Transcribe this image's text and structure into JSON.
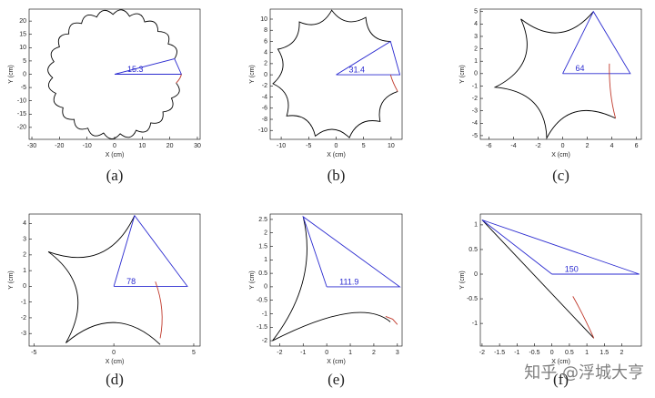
{
  "chart_data": [
    {
      "type": "line",
      "label": "(a)",
      "xlabel": "X (cm)",
      "ylabel": "Y (cm)",
      "annotation": 15.3,
      "xlim": [
        -31,
        31
      ],
      "ylim": [
        -24.5,
        24.5
      ],
      "xticks": [
        -30,
        -20,
        -10,
        0,
        10,
        20,
        30
      ],
      "yticks": [
        -20,
        -15,
        -10,
        -5,
        0,
        5,
        10,
        15,
        20
      ],
      "series": [
        {
          "color": "#000000",
          "smooth": true,
          "x": [
            21.7,
            22.4,
            19.4,
            19.2,
            15.7,
            14.5,
            10.9,
            8.9,
            5.4,
            2.6,
            -0.6,
            -3.9,
            -6.5,
            -10.1,
            -12.0,
            -15.6,
            -16.6,
            -19.9,
            -20.0,
            -22.9,
            -22.0,
            -24.2,
            -22.5,
            -23.9,
            -21.3,
            -21.8,
            -18.7,
            -18.2,
            -14.7,
            -13.3,
            -9.7,
            -7.5,
            -4.0,
            -1.1,
            2.0,
            5.4,
            7.8,
            11.4,
            13.1,
            16.7,
            17.5,
            20.8,
            20.6,
            23.4,
            22.3
          ],
          "y": [
            5.8,
            9.4,
            11.4,
            14.9,
            16.1,
            19.5,
            19.7,
            22.6,
            21.8,
            24.2,
            22.5,
            24.0,
            21.5,
            22.1,
            19.1,
            18.7,
            15.2,
            13.9,
            10.3,
            8.2,
            4.7,
            1.8,
            -1.3,
            -4.6,
            -7.2,
            -10.7,
            -12.6,
            -16.1,
            -17.0,
            -20.3,
            -20.3,
            -23.1,
            -22.1,
            -24.3,
            -22.4,
            -23.7,
            -21.1,
            -21.5,
            -18.3,
            -17.7,
            -14.2,
            -12.6,
            -9.0,
            -6.7,
            -3.3
          ]
        },
        {
          "color": "#2b2bd0",
          "smooth": false,
          "x": [
            0,
            21.7,
            24.2,
            0
          ],
          "y": [
            0,
            5.8,
            0,
            0
          ]
        },
        {
          "color": "#c0392b",
          "smooth": true,
          "x": [
            22.3,
            23.6,
            24.2
          ],
          "y": [
            -3.3,
            -1.6,
            0
          ]
        }
      ]
    },
    {
      "type": "line",
      "label": "(b)",
      "xlabel": "X (cm)",
      "ylabel": "Y (cm)",
      "annotation": 31.4,
      "xlim": [
        -12,
        12
      ],
      "ylim": [
        -11.6,
        11.8
      ],
      "xticks": [
        -10,
        -5,
        0,
        5,
        10
      ],
      "yticks": [
        -10,
        -8,
        -6,
        -4,
        -2,
        0,
        2,
        4,
        6,
        8,
        10
      ],
      "series": [
        {
          "color": "#000000",
          "smooth": true,
          "x": [
            9.9,
            6.7,
            5.4,
            2.0,
            -0.8,
            -3.3,
            -6.7,
            -7.6,
            -10.6,
            -9.7,
            -11.5,
            -9.0,
            -9.0,
            -5.6,
            -3.8,
            -0.6,
            2.4,
            4.6,
            8.0,
            8.4,
            11.2
          ],
          "y": [
            6.0,
            7.1,
            10.3,
            9.6,
            11.6,
            9.2,
            9.5,
            6.2,
            4.6,
            1.3,
            -1.6,
            -3.9,
            -7.4,
            -8.0,
            -11.0,
            -9.8,
            -11.3,
            -8.7,
            -8.4,
            -5.0,
            -3.0
          ]
        },
        {
          "color": "#2b2bd0",
          "smooth": false,
          "x": [
            0,
            9.9,
            11.6,
            0
          ],
          "y": [
            0,
            6.0,
            0,
            0
          ]
        },
        {
          "color": "#c0392b",
          "smooth": true,
          "x": [
            11.2,
            10.4,
            9.9
          ],
          "y": [
            -3.0,
            -1.4,
            0
          ]
        }
      ]
    },
    {
      "type": "line",
      "label": "(c)",
      "xlabel": "X (cm)",
      "ylabel": "Y (cm)",
      "annotation": 64,
      "xlim": [
        -6.7,
        6.4
      ],
      "ylim": [
        -5.3,
        5.2
      ],
      "xticks": [
        -6,
        -4,
        -2,
        0,
        2,
        4,
        6
      ],
      "yticks": [
        -5,
        -4,
        -3,
        -2,
        -1,
        0,
        1,
        2,
        3,
        4,
        5
      ],
      "series": [
        {
          "color": "#000000",
          "smooth": true,
          "x": [
            2.5,
            -0.3,
            -3.4,
            -3.1,
            -5.5,
            -2.4,
            -1.3,
            1.0,
            4.3
          ],
          "y": [
            5.0,
            3.3,
            4.4,
            1.2,
            -1.1,
            -2.3,
            -5.2,
            -3.1,
            -3.6
          ]
        },
        {
          "color": "#2b2bd0",
          "smooth": false,
          "x": [
            0,
            2.5,
            5.5,
            0
          ],
          "y": [
            0,
            5.0,
            0,
            0
          ]
        },
        {
          "color": "#c0392b",
          "smooth": true,
          "x": [
            4.3,
            3.9,
            3.8
          ],
          "y": [
            -3.6,
            -1.5,
            0.8
          ]
        }
      ]
    },
    {
      "type": "line",
      "label": "(d)",
      "xlabel": "X (cm)",
      "ylabel": "Y (cm)",
      "annotation": 78,
      "xlim": [
        -5.3,
        5.4
      ],
      "ylim": [
        -3.8,
        4.6
      ],
      "xticks": [
        -5,
        0,
        5
      ],
      "yticks": [
        -3,
        -2,
        -1,
        0,
        1,
        2,
        3,
        4
      ],
      "series": [
        {
          "color": "#000000",
          "smooth": true,
          "x": [
            1.3,
            -0.9,
            -4.1,
            -2.3,
            -3.0,
            0.0,
            2.9
          ],
          "y": [
            4.5,
            2.1,
            2.2,
            -0.4,
            -3.6,
            -2.3,
            -3.7
          ]
        },
        {
          "color": "#2b2bd0",
          "smooth": false,
          "x": [
            0,
            1.3,
            4.6,
            0
          ],
          "y": [
            0,
            4.5,
            0,
            0
          ]
        },
        {
          "color": "#c0392b",
          "smooth": true,
          "x": [
            2.9,
            3.0,
            2.6
          ],
          "y": [
            -3.3,
            -1.5,
            0.3
          ]
        }
      ]
    },
    {
      "type": "line",
      "label": "(e)",
      "xlabel": "X (cm)",
      "ylabel": "Y (cm)",
      "annotation": 111.9,
      "xlim": [
        -2.4,
        3.2
      ],
      "ylim": [
        -2.2,
        2.7
      ],
      "xticks": [
        -2,
        -1,
        0,
        1,
        2,
        3
      ],
      "yticks": [
        -2,
        -1.5,
        -1,
        -0.5,
        0,
        0.5,
        1,
        1.5,
        2,
        2.5
      ],
      "series": [
        {
          "color": "#000000",
          "smooth": true,
          "x": [
            -1.0,
            -1.0,
            -2.3,
            0.8,
            2.7
          ],
          "y": [
            2.6,
            0.26,
            -2.0,
            -1.0,
            -1.3
          ]
        },
        {
          "color": "#2b2bd0",
          "smooth": false,
          "x": [
            0,
            -1.0,
            3.1,
            0
          ],
          "y": [
            0,
            2.6,
            0,
            0
          ]
        },
        {
          "color": "#c0392b",
          "smooth": false,
          "x": [
            2.5,
            2.8,
            3.0
          ],
          "y": [
            -1.1,
            -1.2,
            -1.4
          ]
        }
      ]
    },
    {
      "type": "line",
      "label": "(f)",
      "xlabel": "X (cm)",
      "ylabel": "Y (cm)",
      "annotation": 150,
      "xlim": [
        -2.05,
        2.56
      ],
      "ylim": [
        -1.46,
        1.22
      ],
      "xticks": [
        -2,
        -1.5,
        -1,
        -0.5,
        0,
        0.5,
        1,
        1.5,
        2
      ],
      "yticks": [
        -1,
        -0.5,
        0,
        0.5,
        1
      ],
      "series": [
        {
          "color": "#000000",
          "smooth": true,
          "x": [
            -2.0,
            -0.4,
            1.2
          ],
          "y": [
            1.1,
            -0.1,
            -1.3
          ]
        },
        {
          "color": "#2b2bd0",
          "smooth": false,
          "x": [
            0,
            -2.0,
            2.5,
            0
          ],
          "y": [
            0,
            1.1,
            0,
            0
          ]
        },
        {
          "color": "#c0392b",
          "smooth": true,
          "x": [
            0.6,
            0.9,
            1.2
          ],
          "y": [
            -0.45,
            -0.85,
            -1.3
          ]
        }
      ]
    }
  ],
  "watermark": "知乎 @浮城大亨"
}
